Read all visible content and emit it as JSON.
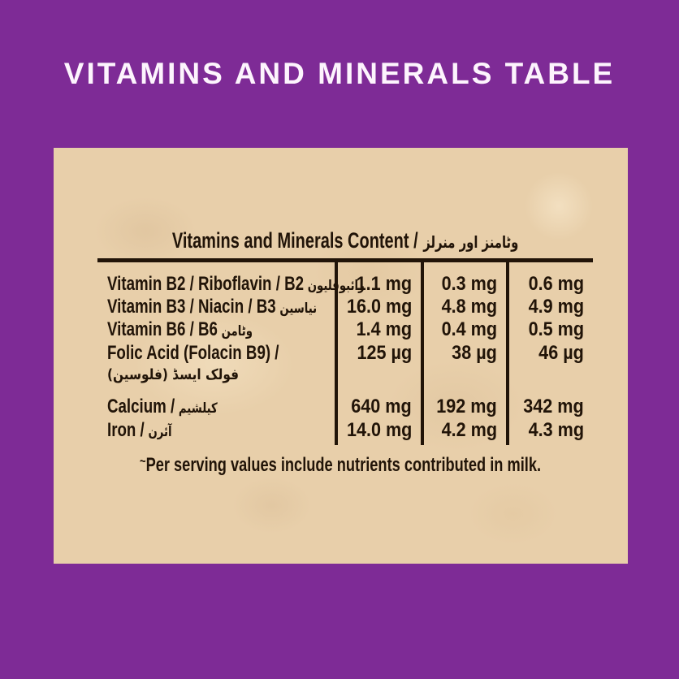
{
  "page_title": "VITAMINS AND MINERALS TABLE",
  "colors": {
    "background_purple": "#7e2b96",
    "panel_kraft": "#e8cfaa",
    "ink": "#211408",
    "header_text": "#fdf4fd"
  },
  "panel": {
    "table_title_en": "Vitamins and Minerals Content /",
    "table_title_ur": "وٹامنز اور منرلز",
    "note_prefix": "~",
    "note_text": "Per serving values include nutrients contributed in milk."
  },
  "table": {
    "rows": [
      {
        "label_en": "Vitamin B2 / Riboflavin / B2",
        "label_ur": "رائبوفلیون",
        "values": [
          "1.1 mg",
          "0.3 mg",
          "0.6 mg"
        ]
      },
      {
        "label_en": "Vitamin B3 / Niacin / B3",
        "label_ur": "نیاسین",
        "values": [
          "16.0 mg",
          "4.8 mg",
          "4.9 mg"
        ]
      },
      {
        "label_en": "Vitamin B6 / B6",
        "label_ur": "وٹامن",
        "values": [
          "1.4 mg",
          "0.4 mg",
          "0.5 mg"
        ]
      },
      {
        "label_en": "Folic Acid (Folacin B9) /",
        "label_ur": "فولک ایسڈ (فلوسین)",
        "values": [
          "125 µg",
          "38 µg",
          "46 µg"
        ]
      },
      {
        "label_en": "Calcium /",
        "label_ur": "کیلشیم",
        "values": [
          "640 mg",
          "192 mg",
          "342 mg"
        ]
      },
      {
        "label_en": "Iron /",
        "label_ur": "آئرن",
        "values": [
          "14.0 mg",
          "4.2 mg",
          "4.3 mg"
        ]
      }
    ]
  }
}
